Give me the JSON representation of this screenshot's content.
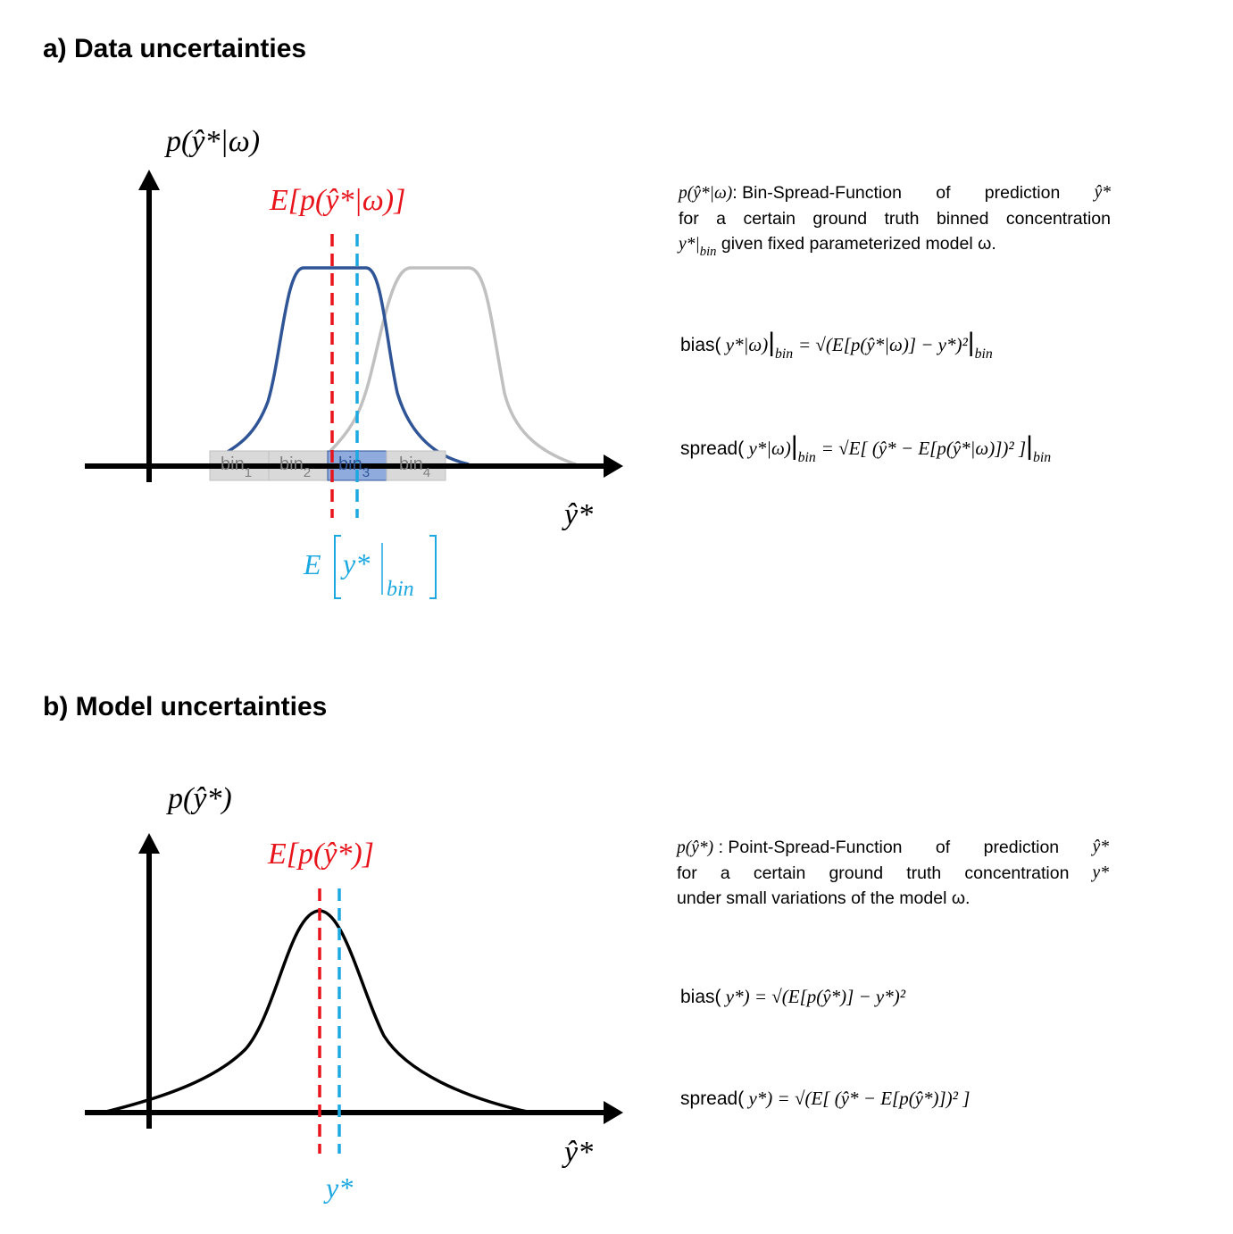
{
  "panel_a": {
    "heading": "a) Data uncertainties",
    "y_axis_label": "p(ŷ*|ω)",
    "x_axis_label": "ŷ*",
    "mean_pred_label": "E[p(ŷ*|ω)]",
    "true_label_prefix": "E",
    "true_label_inner": "y*",
    "true_label_sub": "bin",
    "bins": [
      {
        "label": "bin",
        "sub": "1",
        "highlight": false
      },
      {
        "label": "bin",
        "sub": "2",
        "highlight": false
      },
      {
        "label": "bin",
        "sub": "3",
        "highlight": true
      },
      {
        "label": "bin",
        "sub": "4",
        "highlight": false
      }
    ],
    "description": {
      "line1_math": "p(ŷ*|ω)",
      "line1_words": [
        ": Bin-Spread-Function",
        "of",
        "prediction",
        "ŷ*"
      ],
      "line2_words": [
        "for",
        "a",
        "certain",
        "ground",
        "truth",
        "binned",
        "concentration"
      ],
      "line3_math": "y*|",
      "line3_sub": "bin",
      "line3_text": " given fixed parameterized model ω."
    },
    "bias_eq": {
      "label": "bias(",
      "arg": " y*|ω)",
      "sub": "bin",
      "rhs": "= √(E[p(ŷ*|ω)] − y*)²",
      "rhs_sub": "bin"
    },
    "spread_eq": {
      "label": "spread(",
      "arg": " y*|ω)",
      "sub": "bin",
      "rhs": "=  √E[ (ŷ* − E[p(ŷ*|ω)])² ]",
      "rhs_sub": "bin"
    },
    "colors": {
      "curve": "#2f5597",
      "curve_ghost": "#c0c0c0",
      "mean": "#e8141c",
      "truth": "#1ca8e0",
      "bin_fill": "#d9d9d9",
      "bin_highlight": "#8faadc"
    }
  },
  "panel_b": {
    "heading": "b) Model uncertainties",
    "y_axis_label": "p(ŷ*)",
    "x_axis_label": "ŷ*",
    "mean_pred_label": "E[p(ŷ*)]",
    "true_label": "y*",
    "description": {
      "line1_math": "p(ŷ*)",
      "line1_words": [
        " : Point-Spread-Function",
        "of",
        "prediction",
        "ŷ*"
      ],
      "line2_words": [
        "for",
        "a",
        "certain",
        "ground",
        "truth",
        "concentration",
        "y*"
      ],
      "line3_text": "under small variations of the model ω."
    },
    "bias_eq": {
      "label": "bias(",
      "arg": " y*) = √(E[p(ŷ*)] − y*)²"
    },
    "spread_eq": {
      "label": "spread(",
      "arg": " y*) =  √(E[ (ŷ* − E[p(ŷ*)])² ]"
    },
    "colors": {
      "curve": "#000000",
      "mean": "#e8141c",
      "truth": "#1ca8e0"
    }
  }
}
